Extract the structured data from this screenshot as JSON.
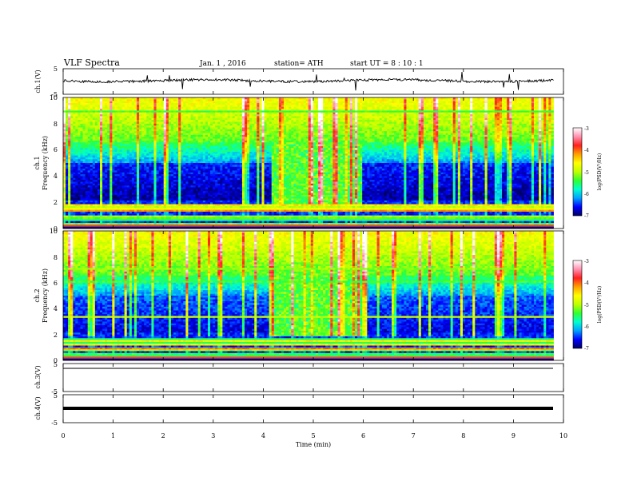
{
  "header": {
    "title": "VLF  Spectra",
    "date": "Jan.  1  , 2016",
    "station": "station= ATH",
    "start": "start  UT  =   8  : 10 : 1"
  },
  "chart_data": {
    "type": "heatmap",
    "xlabel": "Time  (min)",
    "xlim": [
      0,
      10
    ],
    "x_ticks": [
      "0",
      "1",
      "2",
      "3",
      "4",
      "5",
      "6",
      "7",
      "8",
      "9",
      "10"
    ],
    "panels": [
      {
        "id": "ch1v",
        "kind": "waveform",
        "ylabel": "ch.1(V)",
        "ylim": [
          -5,
          5
        ],
        "y_ticks": [
          "5",
          "-5"
        ],
        "trace": "noisy"
      },
      {
        "id": "ch1",
        "kind": "spectrogram",
        "ylabel": "ch.1",
        "ylabel2": "Frequency  (kHz)",
        "ylim": [
          0,
          10
        ],
        "y_ticks": [
          "0",
          "2",
          "4",
          "6",
          "8",
          "10"
        ]
      },
      {
        "id": "ch2",
        "kind": "spectrogram",
        "ylabel": "ch.2",
        "ylabel2": "Frequency  (kHz)",
        "ylim": [
          0,
          10
        ],
        "y_ticks": [
          "0",
          "2",
          "4",
          "6",
          "8",
          "10"
        ]
      },
      {
        "id": "ch3v",
        "kind": "waveform",
        "ylabel": "ch.3(V)",
        "ylim": [
          -5,
          5
        ],
        "y_ticks": [
          "5",
          "-5"
        ],
        "trace": "flat"
      },
      {
        "id": "ch4v",
        "kind": "waveform",
        "ylabel": "ch.4(V)",
        "ylim": [
          -5,
          5
        ],
        "y_ticks": [
          "5",
          "-5"
        ],
        "trace": "thick"
      }
    ],
    "data_end_min": 9.8,
    "colorbar": {
      "label": "log(PSD(V²/Hz)",
      "range": [
        -7,
        -3
      ],
      "ticks": [
        "-3",
        "-4",
        "-5",
        "-6",
        "-7"
      ],
      "colors": [
        "#000060",
        "#0000ff",
        "#00a0ff",
        "#00ffd0",
        "#30ff30",
        "#c0ff00",
        "#ffff00",
        "#ffa000",
        "#ff2020",
        "#ff90b0",
        "#ffffff"
      ]
    }
  }
}
